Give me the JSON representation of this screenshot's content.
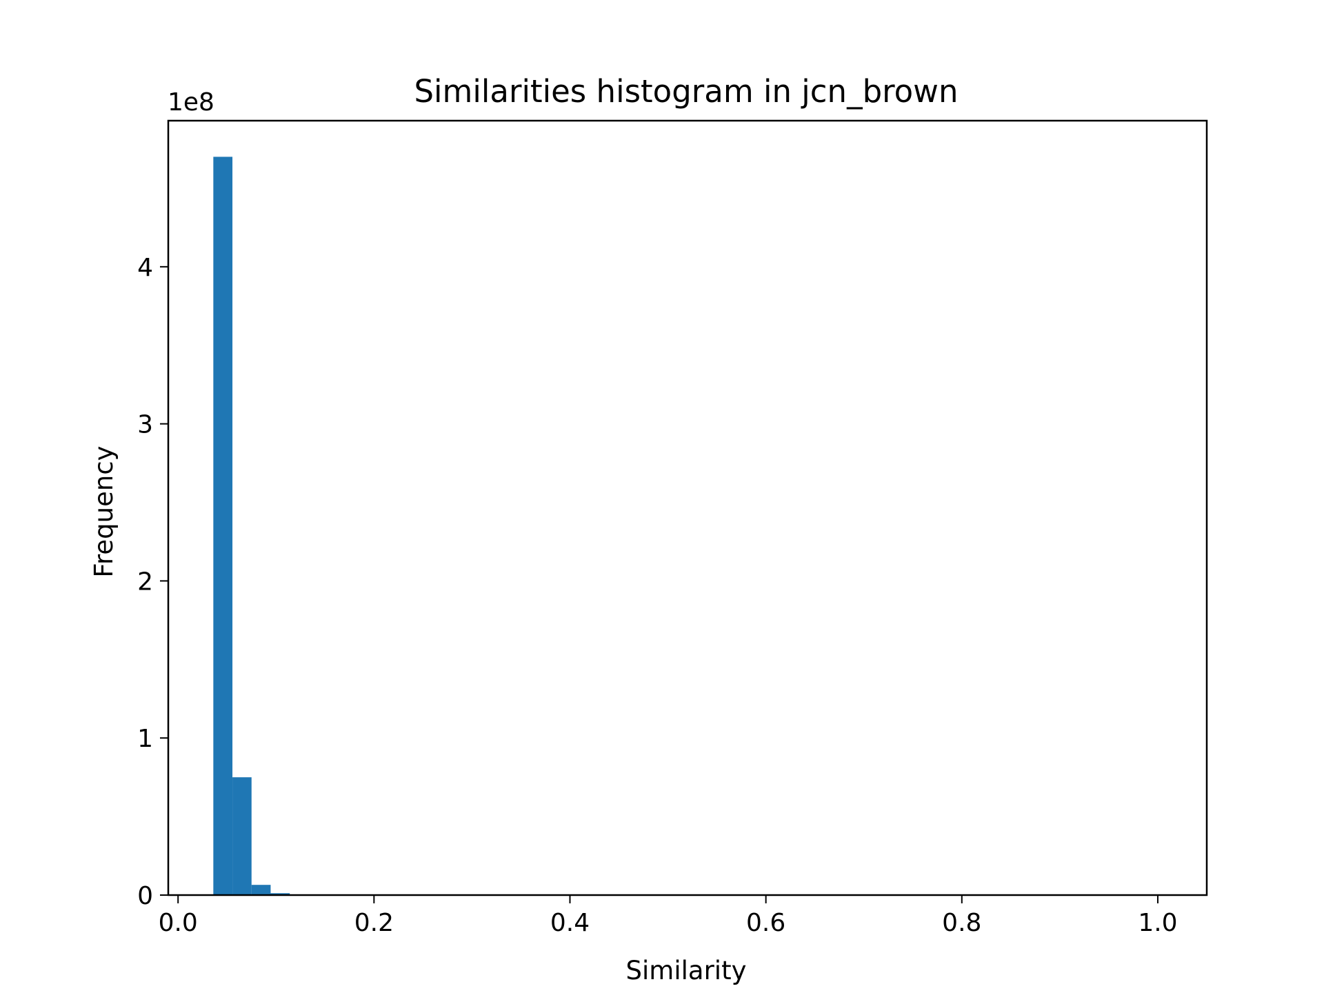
{
  "chart_data": {
    "type": "bar",
    "title": "Similarities histogram in jcn_brown",
    "xlabel": "Similarity",
    "ylabel": "Frequency",
    "y_offset_text": "1e8",
    "xlim": [
      -0.01,
      1.05
    ],
    "ylim": [
      0,
      4.93
    ],
    "x_ticks": [
      0.0,
      0.2,
      0.4,
      0.6,
      0.8,
      1.0
    ],
    "x_tick_labels": [
      "0.0",
      "0.2",
      "0.4",
      "0.6",
      "0.8",
      "1.0"
    ],
    "y_ticks": [
      0,
      1,
      2,
      3,
      4
    ],
    "y_tick_labels": [
      "0",
      "1",
      "2",
      "3",
      "4"
    ],
    "y_scale_multiplier": 100000000,
    "grid": false,
    "bar_color": "#1f77b4",
    "bins": [
      {
        "x0": 0.036,
        "x1": 0.0555,
        "value": 4.7
      },
      {
        "x0": 0.0555,
        "x1": 0.075,
        "value": 0.75
      },
      {
        "x0": 0.075,
        "x1": 0.0945,
        "value": 0.065
      },
      {
        "x0": 0.0945,
        "x1": 0.114,
        "value": 0.012
      },
      {
        "x0": 0.114,
        "x1": 0.1335,
        "value": 0.003
      },
      {
        "x0": 0.1335,
        "x1": 0.153,
        "value": 0.001
      }
    ]
  }
}
